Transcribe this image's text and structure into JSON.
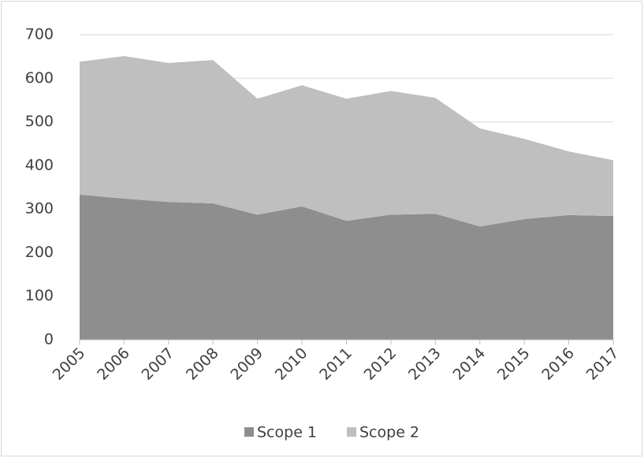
{
  "chart_data": {
    "type": "area",
    "stacked": true,
    "categories": [
      "2005",
      "2006",
      "2007",
      "2008",
      "2009",
      "2010",
      "2011",
      "2012",
      "2013",
      "2014",
      "2015",
      "2016",
      "2017"
    ],
    "series": [
      {
        "name": "Scope 1",
        "color": "#8e8e8e",
        "values": [
          333,
          324,
          316,
          313,
          287,
          306,
          273,
          287,
          289,
          260,
          277,
          286,
          284
        ]
      },
      {
        "name": "Scope 2",
        "color": "#bfbfbf",
        "values": [
          305,
          327,
          319,
          329,
          266,
          278,
          280,
          284,
          266,
          225,
          184,
          146,
          128
        ]
      }
    ],
    "ylim": [
      0,
      700
    ],
    "yticks": [
      0,
      100,
      200,
      300,
      400,
      500,
      600,
      700
    ],
    "grid": true,
    "legend": "bottom"
  }
}
